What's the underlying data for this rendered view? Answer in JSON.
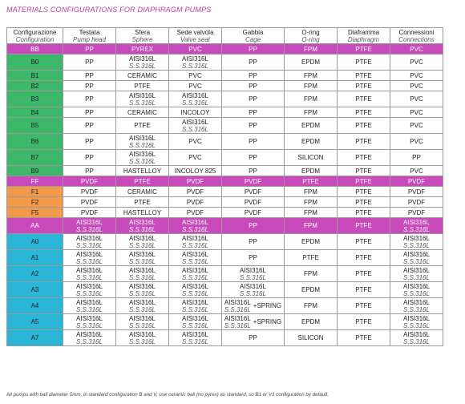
{
  "title": "MATERIALS CONFIGURATIONS FOR DIAPHRAGM PUMPS",
  "headers": [
    {
      "it": "Configurazione",
      "en": "Configuration"
    },
    {
      "it": "Testata",
      "en": "Pump head"
    },
    {
      "it": "Sfera",
      "en": "Sphere"
    },
    {
      "it": "Sede valvola",
      "en": "Valve seat"
    },
    {
      "it": "Gabbia",
      "en": "Cage"
    },
    {
      "it": "O-ring",
      "en": "O-ring"
    },
    {
      "it": "Diaframma",
      "en": "Diaphragm"
    },
    {
      "it": "Connessioni",
      "en": "Connections"
    }
  ],
  "rows": [
    {
      "type": "sep",
      "cfg": "BB",
      "cells": [
        [
          "PP"
        ],
        [
          "PYREX"
        ],
        [
          "PVC"
        ],
        [
          "PP"
        ],
        [
          "FPM"
        ],
        [
          "PTFE"
        ],
        [
          "PVC"
        ]
      ]
    },
    {
      "type": "g",
      "cfg": "B0",
      "cells": [
        [
          "PP"
        ],
        [
          "AISI316L",
          "S.S.316L"
        ],
        [
          "AISI316L",
          "S.S.316L"
        ],
        [
          "PP"
        ],
        [
          "EPDM"
        ],
        [
          "PTFE"
        ],
        [
          "PVC"
        ]
      ]
    },
    {
      "type": "g",
      "cfg": "B1",
      "cells": [
        [
          "PP"
        ],
        [
          "CERAMIC"
        ],
        [
          "PVC"
        ],
        [
          "PP"
        ],
        [
          "FPM"
        ],
        [
          "PTFE"
        ],
        [
          "PVC"
        ]
      ]
    },
    {
      "type": "g",
      "cfg": "B2",
      "cells": [
        [
          "PP"
        ],
        [
          "PTFE"
        ],
        [
          "PVC"
        ],
        [
          "PP"
        ],
        [
          "FPM"
        ],
        [
          "PTFE"
        ],
        [
          "PVC"
        ]
      ]
    },
    {
      "type": "g",
      "cfg": "B3",
      "cells": [
        [
          "PP"
        ],
        [
          "AISI316L",
          "S.S.316L"
        ],
        [
          "AISI316L",
          "S.S.316L"
        ],
        [
          "PP"
        ],
        [
          "FPM"
        ],
        [
          "PTFE"
        ],
        [
          "PVC"
        ]
      ]
    },
    {
      "type": "g",
      "cfg": "B4",
      "cells": [
        [
          "PP"
        ],
        [
          "CERAMIC"
        ],
        [
          "INCOLOY"
        ],
        [
          "PP"
        ],
        [
          "FPM"
        ],
        [
          "PTFE"
        ],
        [
          "PVC"
        ]
      ]
    },
    {
      "type": "g",
      "cfg": "B5",
      "cells": [
        [
          "PP"
        ],
        [
          "PTFE"
        ],
        [
          "AISI316L",
          "S.S.316L"
        ],
        [
          "PP"
        ],
        [
          "EPDM"
        ],
        [
          "PTFE"
        ],
        [
          "PVC"
        ]
      ]
    },
    {
      "type": "g",
      "cfg": "B6",
      "cells": [
        [
          "PP"
        ],
        [
          "AISI316L",
          "S.S.316L"
        ],
        [
          "PVC"
        ],
        [
          "PP"
        ],
        [
          "EPDM"
        ],
        [
          "PTFE"
        ],
        [
          "PVC"
        ]
      ]
    },
    {
      "type": "g",
      "cfg": "B7",
      "cells": [
        [
          "PP"
        ],
        [
          "AISI316L",
          "S.S.316L"
        ],
        [
          "PVC"
        ],
        [
          "PP"
        ],
        [
          "SILICON"
        ],
        [
          "PTFE"
        ],
        [
          "PP"
        ]
      ]
    },
    {
      "type": "g",
      "cfg": "B9",
      "cells": [
        [
          "PP"
        ],
        [
          "HASTELLOY"
        ],
        [
          "INCOLOY 825"
        ],
        [
          "PP"
        ],
        [
          "EPDM"
        ],
        [
          "PTFE"
        ],
        [
          "PVC"
        ]
      ]
    },
    {
      "type": "sep",
      "cfg": "FF",
      "cells": [
        [
          "PVDF"
        ],
        [
          "PTFE"
        ],
        [
          "PVDF"
        ],
        [
          "PVDF"
        ],
        [
          "PTFE"
        ],
        [
          "PTFE"
        ],
        [
          "PVDF"
        ]
      ]
    },
    {
      "type": "o",
      "cfg": "F1",
      "cells": [
        [
          "PVDF"
        ],
        [
          "CERAMIC"
        ],
        [
          "PVDF"
        ],
        [
          "PVDF"
        ],
        [
          "FPM"
        ],
        [
          "PTFE"
        ],
        [
          "PVDF"
        ]
      ]
    },
    {
      "type": "o",
      "cfg": "F2",
      "cells": [
        [
          "PVDF"
        ],
        [
          "PTFE"
        ],
        [
          "PVDF"
        ],
        [
          "PVDF"
        ],
        [
          "FPM"
        ],
        [
          "PTFE"
        ],
        [
          "PVDF"
        ]
      ]
    },
    {
      "type": "o",
      "cfg": "F5",
      "cells": [
        [
          "PVDF"
        ],
        [
          "HASTELLOY"
        ],
        [
          "PVDF"
        ],
        [
          "PVDF"
        ],
        [
          "FPM"
        ],
        [
          "PTFE"
        ],
        [
          "PVDF"
        ]
      ]
    },
    {
      "type": "sep",
      "cfg": "AA",
      "cells": [
        [
          "AISI316L",
          "S.S.316L"
        ],
        [
          "AISI316L",
          "S.S.316L"
        ],
        [
          "AISI316L",
          "S.S.316L"
        ],
        [
          "PP"
        ],
        [
          "FPM"
        ],
        [
          "PTFE"
        ],
        [
          "AISI316L",
          "S.S.316L"
        ]
      ]
    },
    {
      "type": "c",
      "cfg": "A0",
      "cells": [
        [
          "AISI316L",
          "S.S.316L"
        ],
        [
          "AISI316L",
          "S.S.316L"
        ],
        [
          "AISI316L",
          "S.S.316L"
        ],
        [
          "PP"
        ],
        [
          "EPDM"
        ],
        [
          "PTFE"
        ],
        [
          "AISI316L",
          "S.S.316L"
        ]
      ]
    },
    {
      "type": "c",
      "cfg": "A1",
      "cells": [
        [
          "AISI316L",
          "S.S.316L"
        ],
        [
          "AISI316L",
          "S.S.316L"
        ],
        [
          "AISI316L",
          "S.S.316L"
        ],
        [
          "PP"
        ],
        [
          "PTFE"
        ],
        [
          "PTFE"
        ],
        [
          "AISI316L",
          "S.S.316L"
        ]
      ]
    },
    {
      "type": "c",
      "cfg": "A2",
      "cells": [
        [
          "AISI316L",
          "S.S.316L"
        ],
        [
          "AISI316L",
          "S.S.316L"
        ],
        [
          "AISI316L",
          "S.S.316L"
        ],
        [
          "AISI316L",
          "S.S.316L"
        ],
        [
          "FPM"
        ],
        [
          "PTFE"
        ],
        [
          "AISI316L",
          "S.S.316L"
        ]
      ]
    },
    {
      "type": "c",
      "cfg": "A3",
      "cells": [
        [
          "AISI316L",
          "S.S.316L"
        ],
        [
          "AISI316L",
          "S.S.316L"
        ],
        [
          "AISI316L",
          "S.S.316L"
        ],
        [
          "AISI316L",
          "S.S.316L"
        ],
        [
          "EPDM"
        ],
        [
          "PTFE"
        ],
        [
          "AISI316L",
          "S.S.316L"
        ]
      ]
    },
    {
      "type": "c",
      "cfg": "A4",
      "cells": [
        [
          "AISI316L",
          "S.S.316L"
        ],
        [
          "AISI316L",
          "S.S.316L"
        ],
        [
          "AISI316L",
          "S.S.316L"
        ],
        [
          "AISI316L",
          "S.S.316L",
          "+SPRING"
        ],
        [
          "FPM"
        ],
        [
          "PTFE"
        ],
        [
          "AISI316L",
          "S.S.316L"
        ]
      ]
    },
    {
      "type": "c",
      "cfg": "A5",
      "cells": [
        [
          "AISI316L",
          "S.S.316L"
        ],
        [
          "AISI316L",
          "S.S.316L"
        ],
        [
          "AISI316L",
          "S.S.316L"
        ],
        [
          "AISI316L",
          "S.S.316L",
          "+SPRING"
        ],
        [
          "EPDM"
        ],
        [
          "PTFE"
        ],
        [
          "AISI316L",
          "S.S.316L"
        ]
      ]
    },
    {
      "type": "c",
      "cfg": "A7",
      "cells": [
        [
          "AISI316L",
          "S.S.316L"
        ],
        [
          "AISI316L",
          "S.S.316L"
        ],
        [
          "AISI316L",
          "S.S.316L"
        ],
        [
          "PP"
        ],
        [
          "SILICON"
        ],
        [
          "PTFE"
        ],
        [
          "AISI316L",
          "S.S.316L"
        ]
      ]
    }
  ],
  "footnote": "All pumps with ball diameter 5mm, in standard configuration B and V, use ceramic ball (no pyrex) as standard, so B1 or V1 configuration by default.",
  "colors": {
    "title": "#c23aa9",
    "separator": "#c94bbb",
    "green": "#3db86b",
    "orange": "#f39a4a",
    "cyan": "#2bb5d6"
  }
}
